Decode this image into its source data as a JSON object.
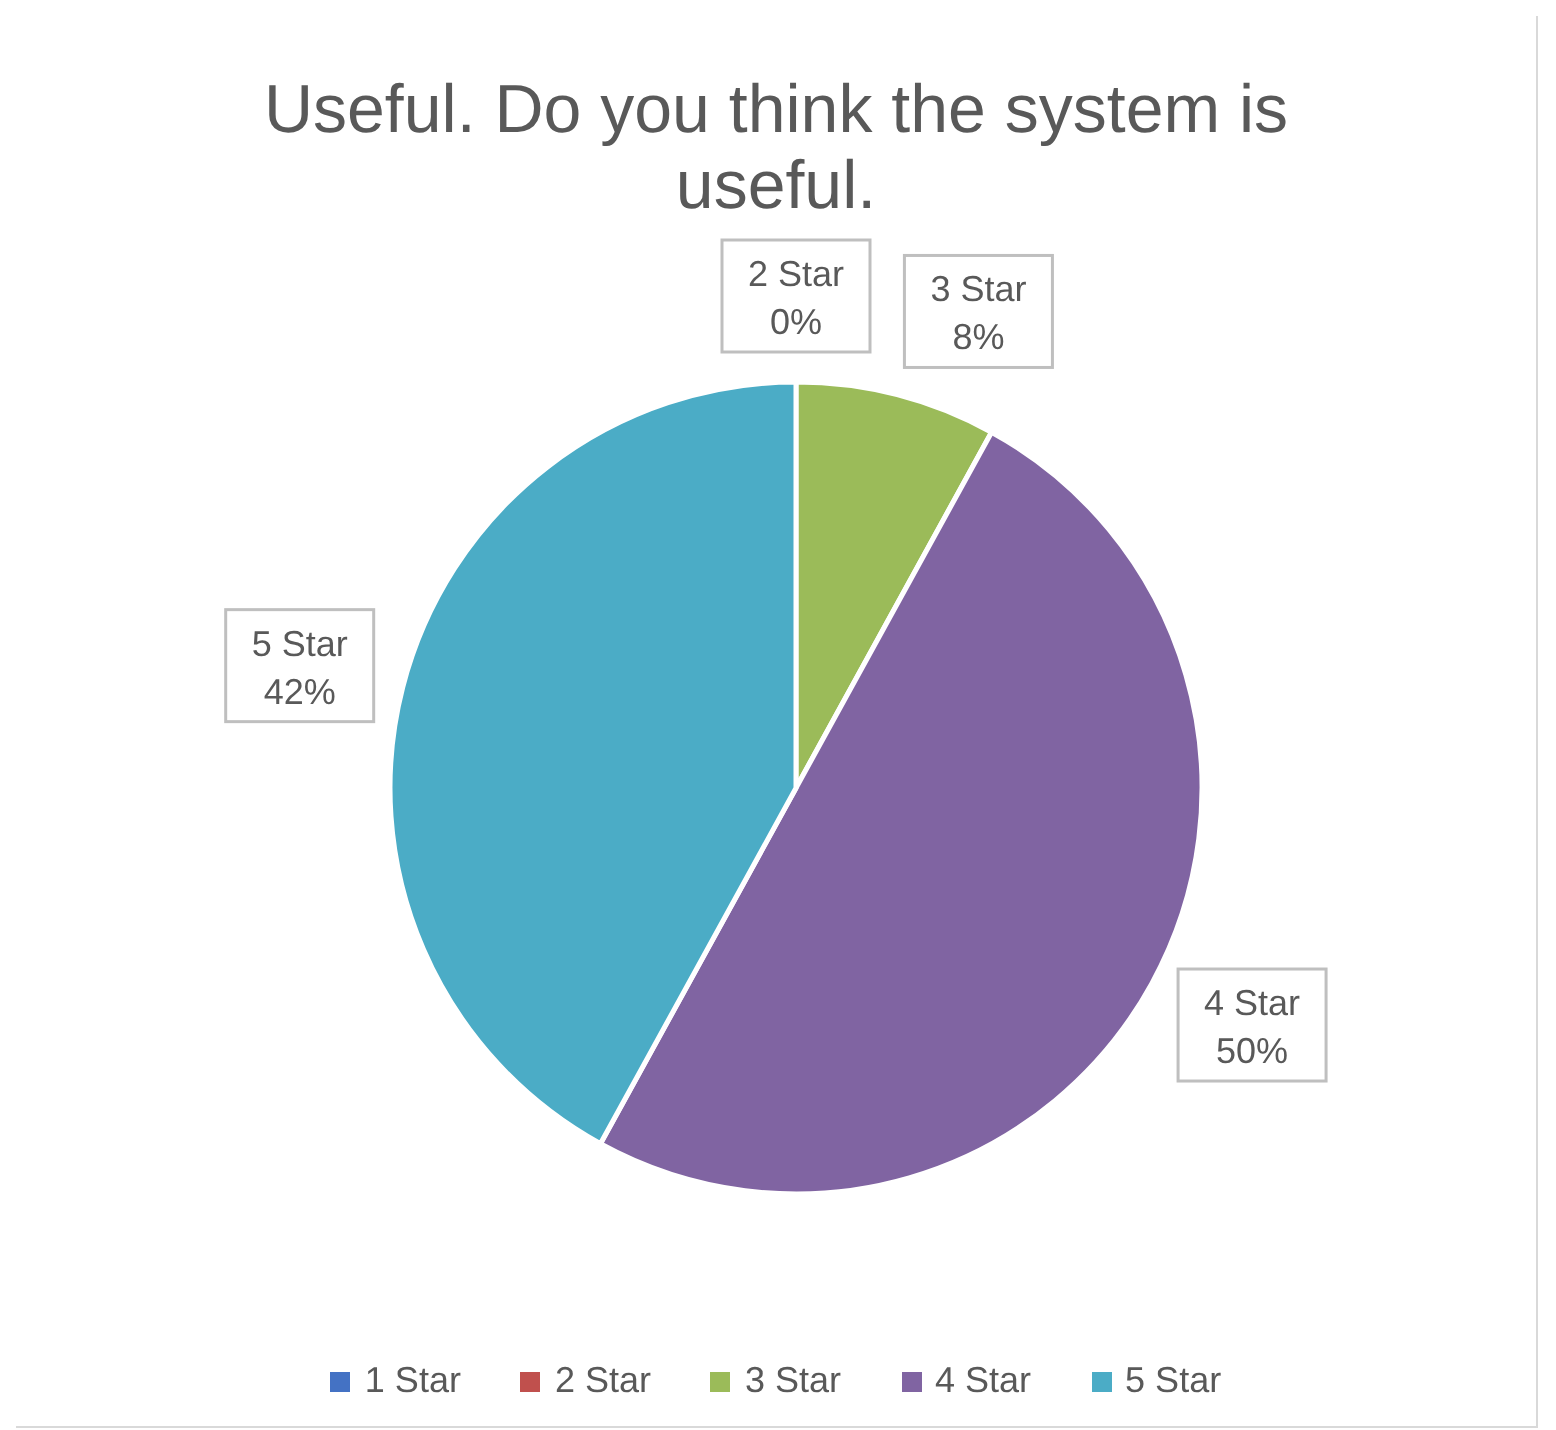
{
  "chart_data": {
    "type": "pie",
    "title": "Useful. Do you think the system is useful.",
    "categories": [
      "1 Star",
      "2 Star",
      "3 Star",
      "4 Star",
      "5 Star"
    ],
    "values": [
      0,
      0,
      8,
      50,
      42
    ],
    "colors": [
      "#4472c4",
      "#c0504d",
      "#9bbb59",
      "#8064a2",
      "#4bacc6"
    ],
    "value_labels": [
      null,
      "0%",
      "8%",
      "50%",
      "42%"
    ],
    "legend": "bottom"
  }
}
